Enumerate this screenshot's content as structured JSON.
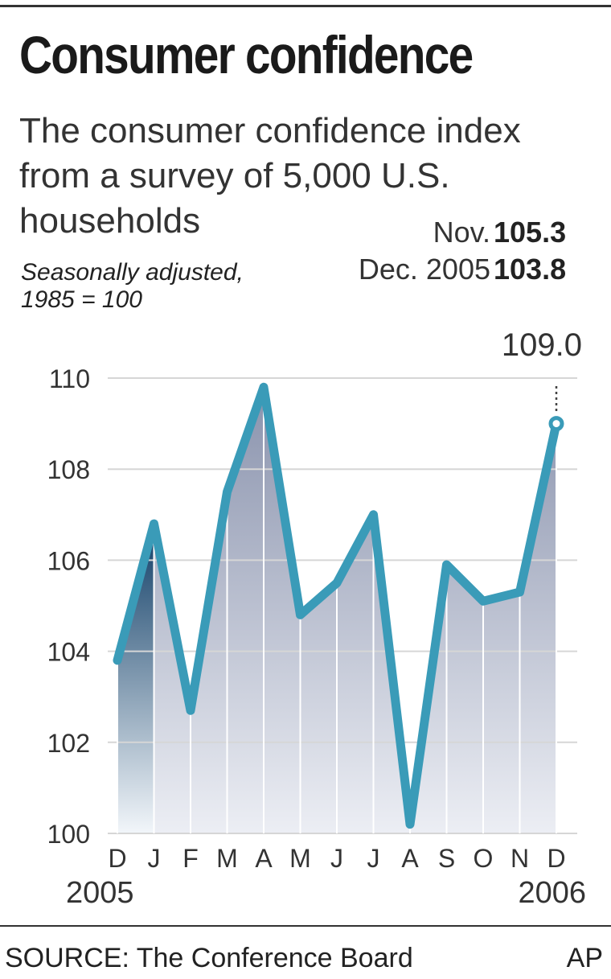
{
  "header": {
    "title": "Consumer confidence",
    "subtitle_lines": [
      "The consumer confidence index",
      "from a survey of 5,000 U.S.",
      "households"
    ],
    "note_lines": [
      "Seasonally adjusted,",
      "1985 = 100"
    ],
    "readouts": [
      {
        "label": "Nov.",
        "value": "105.3"
      },
      {
        "label": "Dec. 2005",
        "value": "103.8"
      }
    ]
  },
  "chart_data": {
    "type": "area",
    "categories": [
      "D",
      "J",
      "F",
      "M",
      "A",
      "M",
      "J",
      "J",
      "A",
      "S",
      "O",
      "N",
      "D"
    ],
    "values": [
      103.8,
      106.8,
      102.7,
      107.5,
      109.8,
      104.8,
      105.5,
      107.0,
      100.2,
      105.9,
      105.1,
      105.3,
      109.0
    ],
    "year_labels": [
      "2005",
      "2006"
    ],
    "ylim": [
      100,
      110
    ],
    "yticks": [
      100,
      102,
      104,
      106,
      108,
      110
    ],
    "annotation": "109.0",
    "grid": true,
    "colors": {
      "line": "#3a9bb8",
      "area_top": "#8a93ad",
      "area_bottom": "#eceef4",
      "highlight_top": "#0f3d66",
      "highlight_bottom": "#f2f6fa",
      "grid": "#d6d6d6"
    }
  },
  "footer": {
    "source": "SOURCE: The Conference Board",
    "credit": "AP"
  }
}
